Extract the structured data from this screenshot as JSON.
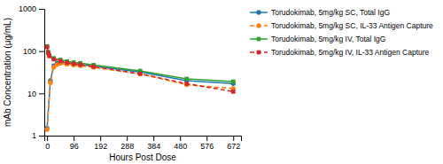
{
  "chart_data": {
    "type": "line",
    "xlabel": "Hours Post Dose",
    "ylabel": "mAb Concentration (μg/mL)",
    "xlim": [
      -10,
      700
    ],
    "ylim": [
      1,
      1000
    ],
    "xticks": [
      0,
      96,
      192,
      288,
      384,
      480,
      576,
      672
    ],
    "yticks": [
      1,
      10,
      100,
      1000
    ],
    "log": "y",
    "legend": "right",
    "series": [
      {
        "name": "Torudokimab, 5mg/kg SC, Total IgG",
        "marker": "circle",
        "line_style": "solid",
        "x": [
          0,
          12,
          24,
          36,
          48,
          72,
          96,
          120,
          168,
          336,
          504,
          672
        ],
        "values": [
          1.5,
          20,
          45,
          52,
          54,
          52,
          50,
          48,
          44,
          32,
          20,
          17
        ]
      },
      {
        "name": "Torudokimab, 5mg/kg SC, IL-33 Antigen Capture",
        "marker": "circle",
        "line_style": "dashed",
        "x": [
          0,
          12,
          24,
          36,
          48,
          72,
          96,
          120,
          168,
          336,
          504,
          672
        ],
        "values": [
          1.4,
          18,
          42,
          48,
          51,
          49,
          47,
          45,
          41,
          29,
          16,
          13
        ]
      },
      {
        "name": "Torudokimab, 5mg/kg IV, Total IgG",
        "marker": "square",
        "line_style": "solid",
        "x": [
          0,
          4,
          8,
          24,
          48,
          72,
          96,
          120,
          168,
          336,
          504,
          672
        ],
        "values": [
          130,
          95,
          80,
          68,
          62,
          57,
          54,
          52,
          47,
          34,
          22,
          19
        ]
      },
      {
        "name": "Torudokimab, 5mg/kg IV, IL-33 Antigen Capture",
        "marker": "square",
        "line_style": "dashed",
        "x": [
          0,
          4,
          8,
          24,
          48,
          72,
          96,
          120,
          168,
          336,
          504,
          672
        ],
        "values": [
          125,
          90,
          76,
          64,
          58,
          53,
          50,
          48,
          43,
          29,
          17,
          11
        ]
      }
    ]
  }
}
